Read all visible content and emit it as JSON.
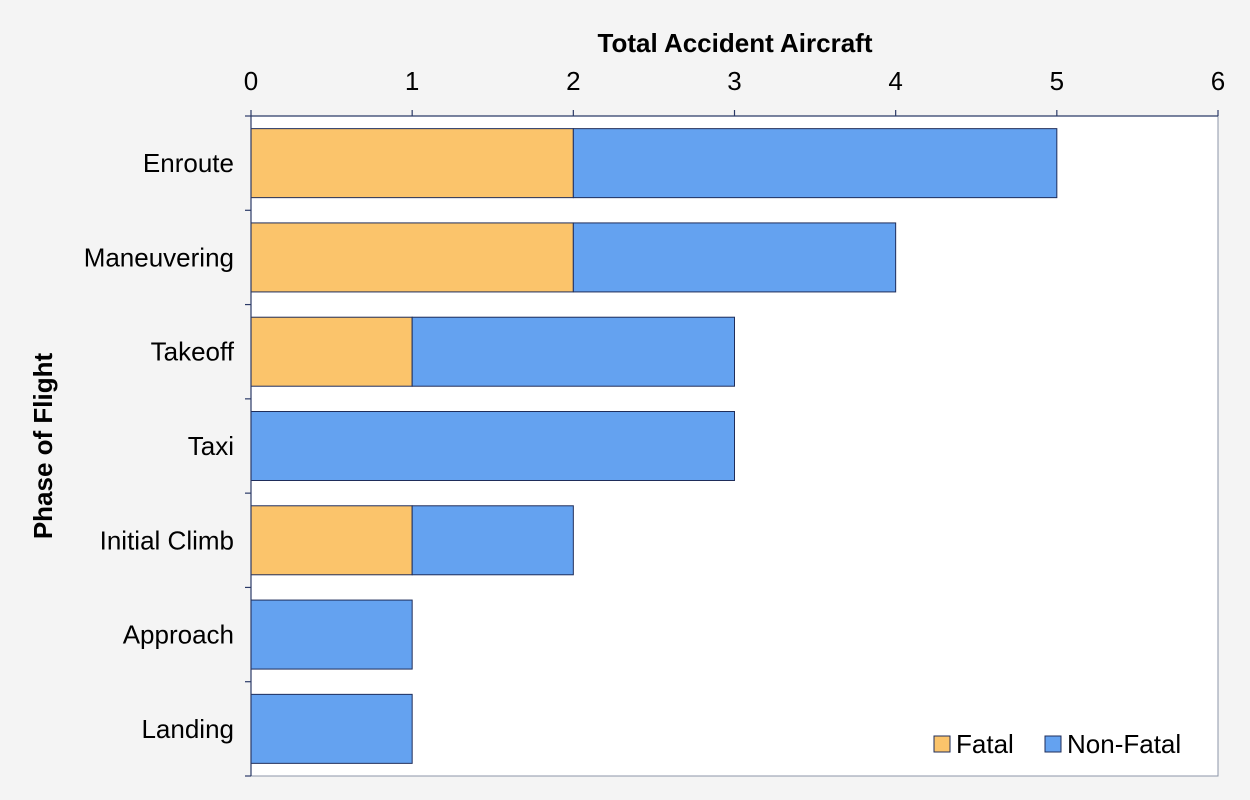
{
  "chart_data": {
    "type": "bar",
    "orientation": "horizontal",
    "stacked": true,
    "title": "",
    "xlabel": "Total Accident Aircraft",
    "ylabel": "Phase of Flight",
    "xlim": [
      0,
      6
    ],
    "x_ticks": [
      0,
      1,
      2,
      3,
      4,
      5,
      6
    ],
    "x_axis_position": "top",
    "grid": false,
    "legend_position": "bottom-right",
    "categories": [
      "Enroute",
      "Maneuvering",
      "Takeoff",
      "Taxi",
      "Initial Climb",
      "Approach",
      "Landing"
    ],
    "series": [
      {
        "name": "Fatal",
        "color": "#fbc46b",
        "values": [
          2,
          2,
          1,
          0,
          1,
          0,
          0
        ]
      },
      {
        "name": "Non-Fatal",
        "color": "#64a2f0",
        "values": [
          3,
          2,
          2,
          3,
          1,
          1,
          1
        ]
      }
    ]
  }
}
